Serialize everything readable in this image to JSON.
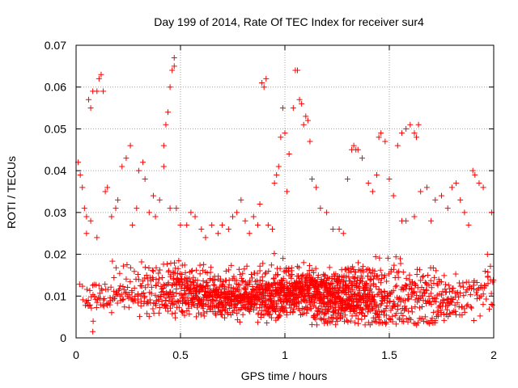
{
  "chart_data": {
    "type": "scatter",
    "title": "Day 199 of 2014, Rate Of TEC Index for receiver sur4",
    "xlabel": "GPS time / hours",
    "ylabel": "ROTI / TECUs",
    "xlim": [
      0,
      2
    ],
    "ylim": [
      0,
      0.07
    ],
    "x_ticks": [
      0,
      0.5,
      1,
      1.5,
      2
    ],
    "x_tick_labels": [
      "0",
      "0.5",
      "1",
      "1.5",
      "2"
    ],
    "y_ticks": [
      0,
      0.01,
      0.02,
      0.03,
      0.04,
      0.05,
      0.06,
      0.07
    ],
    "y_tick_labels": [
      "0",
      "0.01",
      "0.02",
      "0.03",
      "0.04",
      "0.05",
      "0.06",
      "0.07"
    ],
    "grid": true,
    "marker": "+",
    "series": [
      {
        "name": "sur4",
        "color": "#ff0000",
        "points": [
          [
            0.01,
            0.042
          ],
          [
            0.02,
            0.039
          ],
          [
            0.03,
            0.036
          ],
          [
            0.04,
            0.031
          ],
          [
            0.05,
            0.025
          ],
          [
            0.06,
            0.057
          ],
          [
            0.07,
            0.055
          ],
          [
            0.08,
            0.059
          ],
          [
            0.1,
            0.059
          ],
          [
            0.11,
            0.062
          ],
          [
            0.12,
            0.063
          ],
          [
            0.13,
            0.059
          ],
          [
            0.05,
            0.029
          ],
          [
            0.07,
            0.028
          ],
          [
            0.1,
            0.024
          ],
          [
            0.14,
            0.035
          ],
          [
            0.15,
            0.036
          ],
          [
            0.17,
            0.029
          ],
          [
            0.19,
            0.031
          ],
          [
            0.2,
            0.033
          ],
          [
            0.22,
            0.041
          ],
          [
            0.24,
            0.043
          ],
          [
            0.26,
            0.046
          ],
          [
            0.27,
            0.027
          ],
          [
            0.29,
            0.031
          ],
          [
            0.3,
            0.04
          ],
          [
            0.32,
            0.042
          ],
          [
            0.33,
            0.038
          ],
          [
            0.35,
            0.03
          ],
          [
            0.37,
            0.034
          ],
          [
            0.38,
            0.029
          ],
          [
            0.4,
            0.033
          ],
          [
            0.42,
            0.041
          ],
          [
            0.42,
            0.046
          ],
          [
            0.43,
            0.051
          ],
          [
            0.44,
            0.054
          ],
          [
            0.45,
            0.06
          ],
          [
            0.46,
            0.064
          ],
          [
            0.47,
            0.065
          ],
          [
            0.47,
            0.067
          ],
          [
            0.45,
            0.031
          ],
          [
            0.48,
            0.031
          ],
          [
            0.5,
            0.027
          ],
          [
            0.53,
            0.027
          ],
          [
            0.55,
            0.03
          ],
          [
            0.57,
            0.029
          ],
          [
            0.6,
            0.026
          ],
          [
            0.62,
            0.024
          ],
          [
            0.65,
            0.027
          ],
          [
            0.68,
            0.025
          ],
          [
            0.7,
            0.027
          ],
          [
            0.73,
            0.026
          ],
          [
            0.75,
            0.029
          ],
          [
            0.77,
            0.03
          ],
          [
            0.79,
            0.033
          ],
          [
            0.81,
            0.028
          ],
          [
            0.83,
            0.025
          ],
          [
            0.85,
            0.029
          ],
          [
            0.87,
            0.027
          ],
          [
            0.88,
            0.032
          ],
          [
            0.89,
            0.061
          ],
          [
            0.9,
            0.06
          ],
          [
            0.91,
            0.062
          ],
          [
            0.92,
            0.027
          ],
          [
            0.94,
            0.026
          ],
          [
            0.95,
            0.037
          ],
          [
            0.96,
            0.039
          ],
          [
            0.97,
            0.041
          ],
          [
            0.98,
            0.048
          ],
          [
            0.99,
            0.055
          ],
          [
            1.0,
            0.049
          ],
          [
            1.01,
            0.035
          ],
          [
            1.02,
            0.044
          ],
          [
            1.04,
            0.055
          ],
          [
            1.05,
            0.064
          ],
          [
            1.06,
            0.064
          ],
          [
            1.07,
            0.057
          ],
          [
            1.08,
            0.056
          ],
          [
            1.09,
            0.051
          ],
          [
            1.1,
            0.053
          ],
          [
            1.11,
            0.052
          ],
          [
            1.12,
            0.047
          ],
          [
            1.13,
            0.038
          ],
          [
            1.15,
            0.036
          ],
          [
            1.17,
            0.031
          ],
          [
            1.2,
            0.03
          ],
          [
            1.23,
            0.026
          ],
          [
            1.26,
            0.026
          ],
          [
            1.28,
            0.025
          ],
          [
            1.3,
            0.038
          ],
          [
            1.32,
            0.045
          ],
          [
            1.33,
            0.046
          ],
          [
            1.34,
            0.045
          ],
          [
            1.35,
            0.045
          ],
          [
            1.37,
            0.043
          ],
          [
            1.4,
            0.037
          ],
          [
            1.42,
            0.035
          ],
          [
            1.44,
            0.039
          ],
          [
            1.45,
            0.048
          ],
          [
            1.46,
            0.049
          ],
          [
            1.48,
            0.047
          ],
          [
            1.5,
            0.038
          ],
          [
            1.52,
            0.034
          ],
          [
            1.54,
            0.046
          ],
          [
            1.56,
            0.049
          ],
          [
            1.58,
            0.05
          ],
          [
            1.6,
            0.051
          ],
          [
            1.62,
            0.049
          ],
          [
            1.63,
            0.048
          ],
          [
            1.64,
            0.051
          ],
          [
            1.56,
            0.028
          ],
          [
            1.58,
            0.028
          ],
          [
            1.62,
            0.029
          ],
          [
            1.65,
            0.035
          ],
          [
            1.68,
            0.036
          ],
          [
            1.7,
            0.028
          ],
          [
            1.72,
            0.033
          ],
          [
            1.75,
            0.034
          ],
          [
            1.78,
            0.031
          ],
          [
            1.8,
            0.036
          ],
          [
            1.82,
            0.037
          ],
          [
            1.84,
            0.033
          ],
          [
            1.86,
            0.03
          ],
          [
            1.88,
            0.027
          ],
          [
            1.9,
            0.04
          ],
          [
            1.91,
            0.039
          ],
          [
            1.93,
            0.037
          ],
          [
            1.95,
            0.036
          ],
          [
            1.97,
            0.02
          ],
          [
            1.99,
            0.03
          ],
          [
            0.08,
            0.0015
          ]
        ],
        "dense_band": {
          "description": "continuous cloud of points across the full time range",
          "x_range": [
            0,
            2
          ],
          "y_range": [
            0.003,
            0.023
          ],
          "typical_y": 0.011,
          "count": 2100
        }
      }
    ]
  }
}
